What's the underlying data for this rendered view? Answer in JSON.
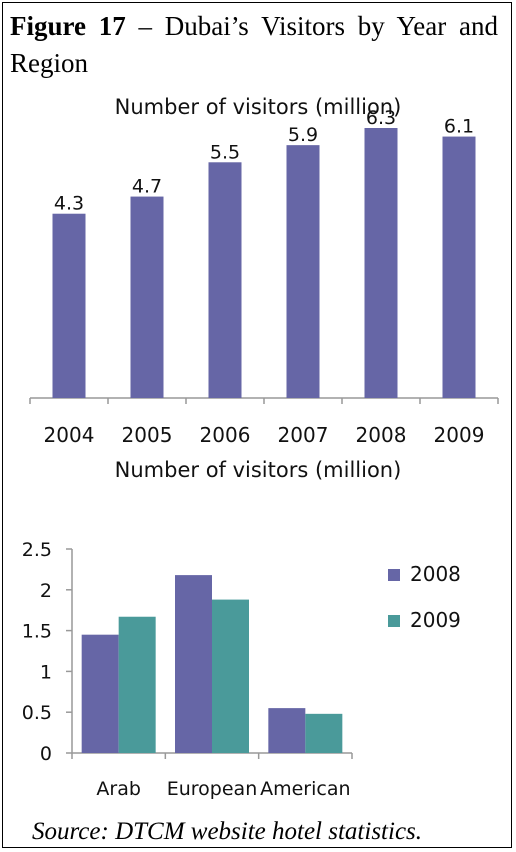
{
  "caption": {
    "label": "Figure 17",
    "text": " – Dubai’s Visitors by Year and Region"
  },
  "source": "Source: DTCM website hotel statistics.",
  "colors": {
    "series_2008": "#6666a6",
    "series_2009": "#4a9a9a",
    "bar": "#6666a6",
    "axis": "#999999"
  },
  "chart_data": [
    {
      "type": "bar",
      "title": "Number of visitors (million)",
      "categories": [
        "2004",
        "2005",
        "2006",
        "2007",
        "2008",
        "2009"
      ],
      "values": [
        4.3,
        4.7,
        5.5,
        5.9,
        6.3,
        6.1
      ],
      "data_labels": [
        "4.3",
        "4.7",
        "5.5",
        "5.9",
        "6.3",
        "6.1"
      ],
      "ylim": [
        0,
        7
      ],
      "grid": false,
      "legend": "none"
    },
    {
      "type": "bar",
      "title": "Number of visitors (million)",
      "categories": [
        "Arab",
        "European",
        "American"
      ],
      "series": [
        {
          "name": "2008",
          "values": [
            1.45,
            2.18,
            0.55
          ]
        },
        {
          "name": "2009",
          "values": [
            1.67,
            1.88,
            0.48
          ]
        }
      ],
      "yticks": [
        "0",
        "0.5",
        "1",
        "1.5",
        "2",
        "2.5"
      ],
      "ylim": [
        0,
        2.5
      ],
      "grid": false,
      "legend": "right"
    }
  ]
}
